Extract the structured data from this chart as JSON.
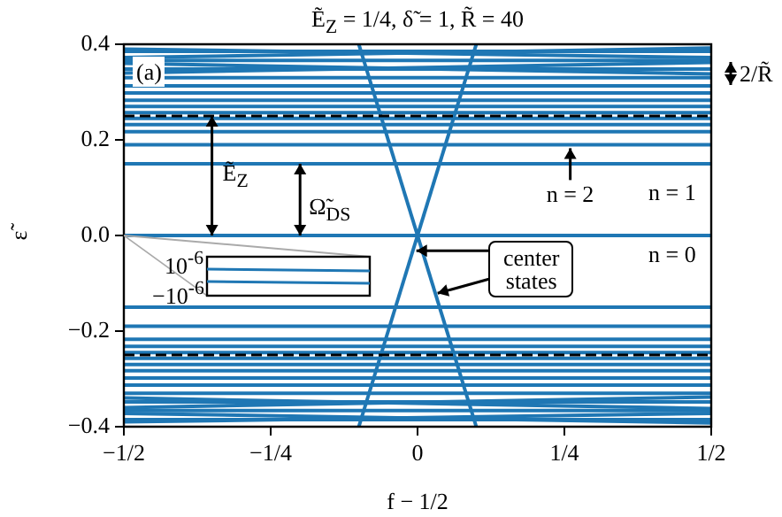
{
  "chart_data": {
    "type": "line",
    "title": "Ẽ$_{Z}$ = 1/4, δ̃ = 1, R̃ = 40",
    "xlabel": "f − 1/2",
    "ylabel": "ε̃",
    "x": [
      -0.5,
      0.5
    ],
    "series": [
      {
        "color": "#1f77b4",
        "values": [
          0,
          0
        ]
      },
      {
        "color": "#1f77b4",
        "values": [
          0.15,
          0.15
        ]
      },
      {
        "color": "#1f77b4",
        "values": [
          0.19,
          0.19
        ]
      },
      {
        "color": "#1f77b4",
        "values": [
          0.217,
          0.217
        ]
      },
      {
        "color": "#1f77b4",
        "values": [
          0.232,
          0.232
        ]
      },
      {
        "color": "#1f77b4",
        "values": [
          0.245,
          0.245
        ]
      },
      {
        "color": "#1f77b4",
        "values": [
          0.257,
          0.257
        ]
      },
      {
        "color": "#1f77b4",
        "values": [
          0.27,
          0.27
        ]
      },
      {
        "color": "#1f77b4",
        "values": [
          0.283,
          0.283
        ]
      },
      {
        "color": "#1f77b4",
        "values": [
          0.298,
          0.298
        ]
      },
      {
        "color": "#1f77b4",
        "values": [
          0.313,
          0.313
        ]
      },
      {
        "color": "#1f77b4",
        "values": [
          0.33,
          0.33
        ]
      },
      {
        "color": "#1f77b4",
        "values": [
          0.348,
          0.348
        ]
      },
      {
        "color": "#1f77b4",
        "values": [
          0.366,
          0.366
        ]
      },
      {
        "color": "#1f77b4",
        "values": [
          0.385,
          0.385
        ]
      },
      {
        "color": "#1f77b4",
        "values": [
          0.36,
          0.338
        ]
      },
      {
        "color": "#1f77b4",
        "values": [
          0.34,
          0.362
        ]
      },
      {
        "color": "#1f77b4",
        "values": [
          0.39,
          0.372
        ]
      },
      {
        "color": "#1f77b4",
        "values": [
          0.372,
          0.392
        ]
      },
      {
        "color": "#1f77b4",
        "values": [
          -0.15,
          -0.15
        ]
      },
      {
        "color": "#1f77b4",
        "values": [
          -0.19,
          -0.19
        ]
      },
      {
        "color": "#1f77b4",
        "values": [
          -0.217,
          -0.217
        ]
      },
      {
        "color": "#1f77b4",
        "values": [
          -0.232,
          -0.232
        ]
      },
      {
        "color": "#1f77b4",
        "values": [
          -0.245,
          -0.245
        ]
      },
      {
        "color": "#1f77b4",
        "values": [
          -0.257,
          -0.257
        ]
      },
      {
        "color": "#1f77b4",
        "values": [
          -0.27,
          -0.27
        ]
      },
      {
        "color": "#1f77b4",
        "values": [
          -0.283,
          -0.283
        ]
      },
      {
        "color": "#1f77b4",
        "values": [
          -0.298,
          -0.298
        ]
      },
      {
        "color": "#1f77b4",
        "values": [
          -0.313,
          -0.313
        ]
      },
      {
        "color": "#1f77b4",
        "values": [
          -0.33,
          -0.33
        ]
      },
      {
        "color": "#1f77b4",
        "values": [
          -0.348,
          -0.348
        ]
      },
      {
        "color": "#1f77b4",
        "values": [
          -0.366,
          -0.366
        ]
      },
      {
        "color": "#1f77b4",
        "values": [
          -0.385,
          -0.385
        ]
      },
      {
        "color": "#1f77b4",
        "values": [
          -0.36,
          -0.338
        ]
      },
      {
        "color": "#1f77b4",
        "values": [
          -0.34,
          -0.362
        ]
      },
      {
        "color": "#1f77b4",
        "values": [
          -0.39,
          -0.372
        ]
      },
      {
        "color": "#1f77b4",
        "values": [
          -0.372,
          -0.392
        ]
      },
      {
        "color": "#1f77b4",
        "x": [
          -0.1,
          0,
          0.1
        ],
        "values": [
          0.4,
          0,
          -0.4
        ]
      },
      {
        "color": "#1f77b4",
        "x": [
          -0.1,
          0,
          0.1
        ],
        "values": [
          -0.4,
          0,
          0.4
        ]
      }
    ],
    "xlim": [
      -0.5,
      0.5
    ],
    "ylim": [
      -0.4,
      0.4
    ],
    "xticks": [
      {
        "value": -0.5,
        "label": "−1/2"
      },
      {
        "value": -0.25,
        "label": "−1/4"
      },
      0,
      {
        "value": 0.25,
        "label": "1/4"
      },
      {
        "value": 0.5,
        "label": "1/2"
      }
    ],
    "yticks": [
      {
        "value": -0.4,
        "label": "−0.4"
      },
      {
        "value": -0.2,
        "label": "−0.2"
      },
      {
        "value": 0,
        "label": "0.0"
      },
      0.2,
      0.4
    ],
    "ref_lines": [
      {
        "axis": "y",
        "value": 0.25,
        "color": "#000000",
        "line_style": "dashed"
      },
      {
        "axis": "y",
        "value": -0.25,
        "color": "#000000",
        "line_style": "dashed"
      }
    ],
    "annotations": [
      "(a)",
      "2/R̃",
      "10$^{-6}$",
      "−10$^{-6}$",
      "n = 1",
      "n = 0",
      {
        "text": "Ẽ$_{Z}$",
        "x": -0.35,
        "y": 0.25
      },
      {
        "text": "Ω̃$_{DS}$",
        "x": -0.2,
        "y": 0.15
      },
      {
        "text": "n = 2",
        "x": 0.26,
        "y": 0.19
      },
      {
        "text": "center states",
        "x": -0.008,
        "y": -0.032
      }
    ],
    "grid": false,
    "legend": false,
    "marker": "none",
    "line_style": "solid"
  }
}
